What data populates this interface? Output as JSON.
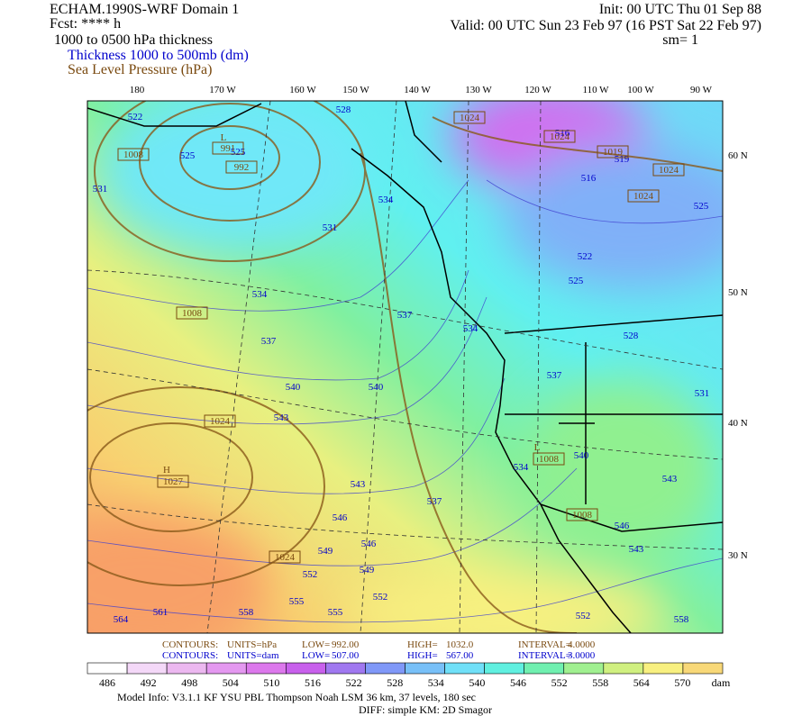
{
  "header": {
    "left": [
      "ECHAM.1990S-WRF Domain 1",
      "Fcst: **** h",
      "1000 to 0500 hPa thickness",
      "Thickness 1000 to 500mb (dm)",
      "Sea Level Pressure (hPa)"
    ],
    "right": [
      "Init: 00 UTC Thu 01 Sep 88",
      "Valid: 00 UTC Sun 23 Feb 97 (16 PST Sat 22 Feb 97)",
      "sm= 1"
    ]
  },
  "map": {
    "longitudes": [
      "180",
      "170 W",
      "160 W",
      "150 W",
      "140 W",
      "130 W",
      "120 W",
      "110 W",
      "100 W",
      "90 W"
    ],
    "latitudes": [
      "60 N",
      "50 N",
      "40 N",
      "30 N"
    ],
    "thickness_labels": [
      522,
      528,
      525,
      525,
      531,
      534,
      531,
      534,
      537,
      537,
      534,
      540,
      540,
      543,
      537,
      531,
      534,
      540,
      543,
      546,
      537,
      546,
      549,
      549,
      552,
      552,
      555,
      555,
      558,
      561,
      564,
      552,
      558,
      546,
      543,
      543,
      516,
      519,
      516,
      522,
      525,
      528,
      525
    ],
    "pressure_labels": [
      "1024",
      "1024",
      "1019",
      "1024",
      "1024",
      "992",
      "L",
      "991",
      "1008",
      "1008",
      "1024",
      "H",
      "1027",
      "1024",
      "1008",
      "1008",
      "L"
    ]
  },
  "contours": [
    [
      "CONTOURS:",
      "UNITS=hPa",
      "LOW=",
      "992.00",
      "HIGH=",
      "1032.0",
      "INTERVAL=",
      "4.0000"
    ],
    [
      "CONTOURS:",
      "UNITS=dam",
      "LOW=",
      "507.00",
      "HIGH=",
      "567.00",
      "INTERVAL=",
      "3.0000"
    ]
  ],
  "colorbar": {
    "labels": [
      486,
      492,
      498,
      504,
      510,
      516,
      522,
      528,
      534,
      540,
      546,
      552,
      558,
      564,
      570
    ],
    "unit": "dam",
    "colors": [
      "#ffffff",
      "#f4d8f8",
      "#ecb8f0",
      "#e498f0",
      "#dc78ec",
      "#c860ec",
      "#a078f0",
      "#8098f8",
      "#78c0f8",
      "#70e0f8",
      "#60f0e0",
      "#70f0b0",
      "#a0f090",
      "#d0f080",
      "#f8f080",
      "#f8d878",
      "#f8b868",
      "#f89868",
      "#f88070",
      "#f87878"
    ]
  },
  "footer": [
    "Model Info: V3.1.1   KF   YSU PBL  Thompson   Noah LSM  36 km,   37 levels,  180 sec",
    "DIFF: simple KM: 2D Smagor"
  ]
}
